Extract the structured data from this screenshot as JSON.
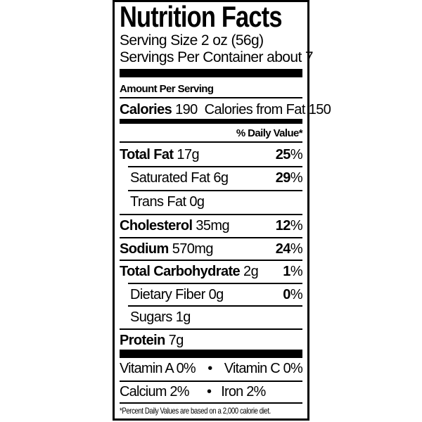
{
  "title": "Nutrition Facts",
  "serving_size": "Serving Size 2 oz (56g)",
  "servings_per_container": "Servings Per Container about 7",
  "amount_per_serving": "Amount Per Serving",
  "calories": {
    "label": "Calories",
    "value": "190",
    "from_fat": "Calories from Fat 150"
  },
  "daily_value_header": "% Daily Value*",
  "nutrients": [
    {
      "name": "Total Fat",
      "amount": "17g",
      "percent": "25",
      "unit": "%"
    },
    {
      "name": "Saturated Fat",
      "amount": "6g",
      "percent": "29",
      "unit": "%"
    },
    {
      "name": "Trans Fat",
      "amount": "0g",
      "percent": "",
      "unit": ""
    },
    {
      "name": "Cholesterol",
      "amount": "35mg",
      "percent": "12",
      "unit": "%"
    },
    {
      "name": "Sodium",
      "amount": "570mg",
      "percent": "24",
      "unit": "%"
    },
    {
      "name": "Total Carbohydrate",
      "amount": "2g",
      "percent": "1",
      "unit": "%"
    },
    {
      "name": "Dietary Fiber",
      "amount": "0g",
      "percent": "0",
      "unit": "%"
    },
    {
      "name": "Sugars",
      "amount": "1g",
      "percent": "",
      "unit": ""
    },
    {
      "name": "Protein",
      "amount": "7g",
      "percent": "",
      "unit": ""
    }
  ],
  "vitamins": [
    {
      "left": "Vitamin A 0%",
      "sep": "•",
      "right": "Vitamin C 0%"
    },
    {
      "left": "Calcium 2%",
      "sep": "•",
      "right": "Iron 2%"
    }
  ],
  "footnote": "*Percent Daily Values are based on a 2,000 calorie diet."
}
